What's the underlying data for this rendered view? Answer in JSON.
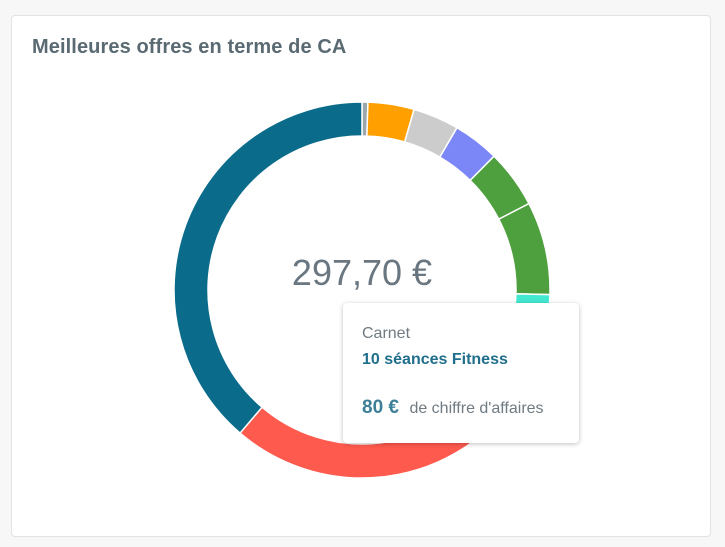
{
  "card": {
    "title": "Meilleures offres en terme de CA"
  },
  "center": {
    "total": "297,70 €"
  },
  "tooltip": {
    "type": "Carnet",
    "name": "10 séances Fitness",
    "value": "80 €",
    "caption": "de chiffre d'affaires"
  },
  "chart_data": {
    "type": "pie",
    "variant": "donut",
    "title": "Meilleures offres en terme de CA",
    "total_label": "297,70 €",
    "unit": "€",
    "legend": "none",
    "slices": [
      {
        "value": 1.5,
        "color": "#9aa7ad"
      },
      {
        "value": 11.8,
        "color": "#ff9f00"
      },
      {
        "value": 11.8,
        "color": "#cccccc"
      },
      {
        "value": 11.8,
        "color": "#7b86f7"
      },
      {
        "value": 14.9,
        "color": "#4e9f3d"
      },
      {
        "value": 23.8,
        "color": "#4e9f3d"
      },
      {
        "value": 26.7,
        "color": "#43e8d1"
      },
      {
        "label": "10 séances Fitness",
        "value": 80,
        "color": "#ff5a4e"
      },
      {
        "value": 115.4,
        "color": "#0a6b8a"
      }
    ]
  }
}
